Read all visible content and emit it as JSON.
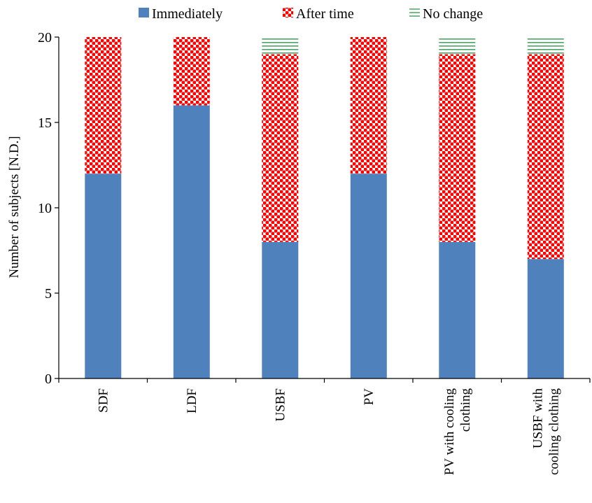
{
  "chart_data": {
    "type": "bar",
    "stacked": true,
    "categories": [
      [
        "SDF"
      ],
      [
        "LDF"
      ],
      [
        "USBF"
      ],
      [
        "PV"
      ],
      [
        "PV with cooling",
        "clothing"
      ],
      [
        "USBF with",
        "cooling clothing"
      ]
    ],
    "series": [
      {
        "name": "Immediately",
        "color": "#4f81bd",
        "pattern": "solid",
        "values": [
          12,
          16,
          8,
          12,
          8,
          7
        ]
      },
      {
        "name": "After time",
        "color": "#ff0000",
        "pattern": "dots",
        "values": [
          8,
          4,
          11,
          8,
          11,
          12
        ]
      },
      {
        "name": "No change",
        "color": "#4aa564",
        "pattern": "horizontal-lines",
        "values": [
          0,
          0,
          1,
          0,
          1,
          1
        ]
      }
    ],
    "title": "",
    "xlabel": "",
    "ylabel": "Number  of subjects  [N.D.]",
    "ylim": [
      0,
      20
    ],
    "yticks": [
      0,
      5,
      10,
      15,
      20
    ],
    "grid": false,
    "legend_position": "top"
  }
}
